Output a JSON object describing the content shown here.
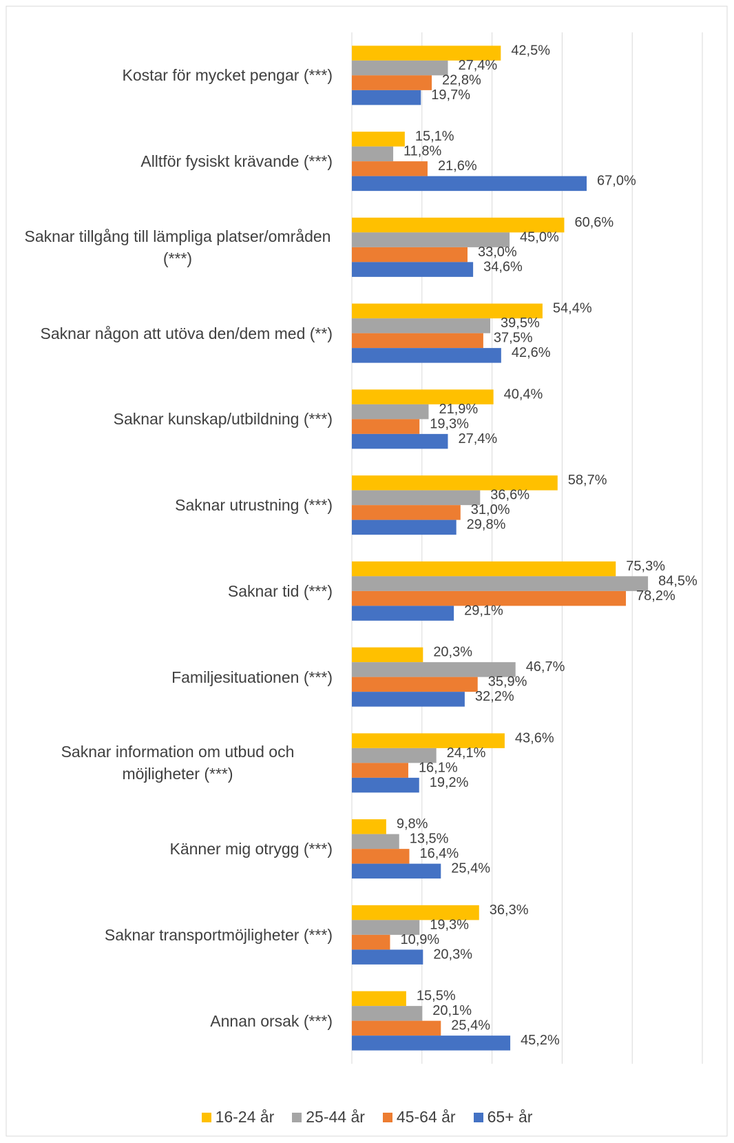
{
  "chart_data": {
    "type": "bar",
    "orientation": "horizontal",
    "categories": [
      "Kostar för mycket pengar (***)",
      "Alltför fysiskt krävande (***)",
      "Saknar tillgång till lämpliga platser/områden (***)",
      "Saknar någon att utöva den/dem med (**)",
      "Saknar kunskap/utbildning (***)",
      "Saknar utrustning (***)",
      "Saknar tid (***)",
      "Familjesituationen (***)",
      "Saknar information om utbud och möjligheter (***)",
      "Känner mig otrygg (***)",
      "Saknar transportmöjligheter (***)",
      "Annan orsak (***)"
    ],
    "series": [
      {
        "name": "16-24 år",
        "color": "#FFC000",
        "values": [
          42.5,
          15.1,
          60.6,
          54.4,
          40.4,
          58.7,
          75.3,
          20.3,
          43.6,
          9.8,
          36.3,
          15.5
        ],
        "value_labels": [
          "42,5%",
          "15,1%",
          "60,6%",
          "54,4%",
          "40,4%",
          "58,7%",
          "75,3%",
          "20,3%",
          "43,6%",
          "9,8%",
          "36,3%",
          "15,5%"
        ]
      },
      {
        "name": "25-44 år",
        "color": "#A5A5A5",
        "values": [
          27.4,
          11.8,
          45.0,
          39.5,
          21.9,
          36.6,
          84.5,
          46.7,
          24.1,
          13.5,
          19.3,
          20.1
        ],
        "value_labels": [
          "27,4%",
          "11,8%",
          "45,0%",
          "39,5%",
          "21,9%",
          "36,6%",
          "84,5%",
          "46,7%",
          "24,1%",
          "13,5%",
          "19,3%",
          "20,1%"
        ]
      },
      {
        "name": "45-64 år",
        "color": "#ED7D31",
        "values": [
          22.8,
          21.6,
          33.0,
          37.5,
          19.3,
          31.0,
          78.2,
          35.9,
          16.1,
          16.4,
          10.9,
          25.4
        ],
        "value_labels": [
          "22,8%",
          "21,6%",
          "33,0%",
          "37,5%",
          "19,3%",
          "31,0%",
          "78,2%",
          "35,9%",
          "16,1%",
          "16,4%",
          "10,9%",
          "25,4%"
        ]
      },
      {
        "name": "65+ år",
        "color": "#4472C4",
        "values": [
          19.7,
          67.0,
          34.6,
          42.6,
          27.4,
          29.8,
          29.1,
          32.2,
          19.2,
          25.4,
          20.3,
          45.2
        ],
        "value_labels": [
          "19,7%",
          "67,0%",
          "34,6%",
          "42,6%",
          "27,4%",
          "29,8%",
          "29,1%",
          "32,2%",
          "19,2%",
          "25,4%",
          "20,3%",
          "45,2%"
        ]
      }
    ],
    "xlim": [
      0,
      100
    ],
    "xticks": [
      0,
      20,
      40,
      60,
      80,
      100
    ],
    "grid": true,
    "legend": "bottom"
  }
}
